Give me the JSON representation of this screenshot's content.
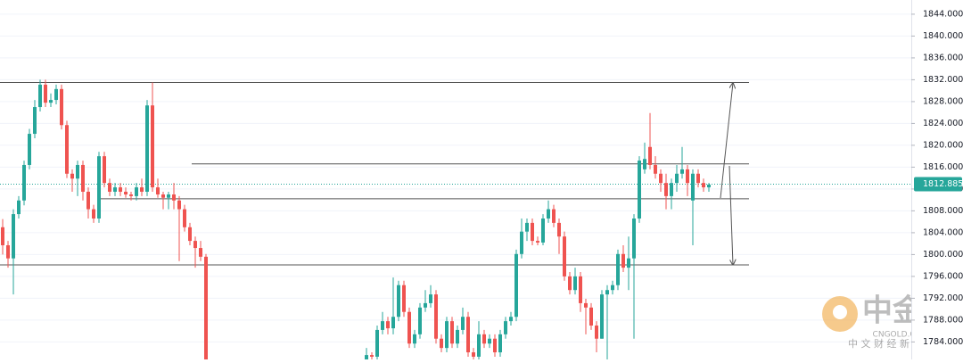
{
  "chart_data": {
    "type": "candlestick",
    "up_color": "#26a69a",
    "down_color": "#ef5350",
    "ylim": [
      1780.8,
      1846.6
    ],
    "yticks": [
      {
        "value": 1844,
        "label": "1844.000"
      },
      {
        "value": 1840,
        "label": "1840.000"
      },
      {
        "value": 1836,
        "label": "1836.000"
      },
      {
        "value": 1832,
        "label": "1832.000"
      },
      {
        "value": 1828,
        "label": "1828.000"
      },
      {
        "value": 1824,
        "label": "1824.000"
      },
      {
        "value": 1820,
        "label": "1820.000"
      },
      {
        "value": 1816,
        "label": "1816.000"
      },
      {
        "value": 1812,
        "label": "1812.000"
      },
      {
        "value": 1808,
        "label": "1808.000"
      },
      {
        "value": 1804,
        "label": "1804.000"
      },
      {
        "value": 1800,
        "label": "1800.000"
      },
      {
        "value": 1796,
        "label": "1796.000"
      },
      {
        "value": 1792,
        "label": "1792.000"
      },
      {
        "value": 1788,
        "label": "1788.000"
      },
      {
        "value": 1784,
        "label": "1784.000"
      }
    ],
    "grid": true,
    "last_price": {
      "value": 1812.885,
      "label": "1812.885"
    },
    "levels": [
      1831.5,
      1816.6,
      1810.2,
      1798.1
    ],
    "ohlc": [
      [
        1805.0,
        1806.5,
        1800.0,
        1801.7
      ],
      [
        1801.7,
        1802.5,
        1797.6,
        1799.3
      ],
      [
        1799.3,
        1808.3,
        1792.7,
        1807.4
      ],
      [
        1807.4,
        1810.7,
        1806.6,
        1809.9
      ],
      [
        1809.9,
        1817.2,
        1809.0,
        1816.4
      ],
      [
        1816.4,
        1823.0,
        1815.6,
        1822.1
      ],
      [
        1822.1,
        1828.3,
        1821.3,
        1827.0
      ],
      [
        1827.0,
        1832.0,
        1826.2,
        1831.1
      ],
      [
        1831.1,
        1832.0,
        1827.0,
        1827.8
      ],
      [
        1827.8,
        1829.5,
        1827.0,
        1828.3
      ],
      [
        1828.3,
        1831.1,
        1827.5,
        1830.3
      ],
      [
        1830.3,
        1831.1,
        1822.9,
        1823.7
      ],
      [
        1823.7,
        1824.5,
        1814.0,
        1814.8
      ],
      [
        1814.8,
        1815.6,
        1811.5,
        1813.9
      ],
      [
        1813.9,
        1817.2,
        1810.7,
        1816.4
      ],
      [
        1816.4,
        1817.2,
        1809.9,
        1811.5
      ],
      [
        1811.5,
        1812.3,
        1806.6,
        1808.3
      ],
      [
        1808.3,
        1809.1,
        1805.8,
        1806.6
      ],
      [
        1806.6,
        1818.8,
        1805.8,
        1818.0
      ],
      [
        1818.0,
        1818.8,
        1812.3,
        1813.1
      ],
      [
        1813.1,
        1813.9,
        1810.7,
        1811.5
      ],
      [
        1811.5,
        1813.1,
        1810.7,
        1812.3
      ],
      [
        1812.3,
        1813.1,
        1810.7,
        1811.5
      ],
      [
        1811.5,
        1812.3,
        1810.4,
        1811.0
      ],
      [
        1811.0,
        1811.5,
        1809.9,
        1810.7
      ],
      [
        1810.7,
        1813.1,
        1809.9,
        1812.3
      ],
      [
        1812.3,
        1813.9,
        1810.7,
        1811.5
      ],
      [
        1811.5,
        1828.3,
        1810.7,
        1827.3
      ],
      [
        1827.3,
        1831.5,
        1811.5,
        1812.3
      ],
      [
        1812.3,
        1813.9,
        1810.4,
        1811.0
      ],
      [
        1811.0,
        1811.5,
        1808.3,
        1810.4
      ],
      [
        1810.4,
        1811.5,
        1808.3,
        1811.0
      ],
      [
        1811.0,
        1813.1,
        1808.3,
        1809.9
      ],
      [
        1809.9,
        1810.7,
        1798.8,
        1808.3
      ],
      [
        1808.3,
        1809.1,
        1804.2,
        1805.0
      ],
      [
        1805.0,
        1805.8,
        1801.7,
        1802.5
      ],
      [
        1802.5,
        1803.3,
        1797.6,
        1801.2
      ],
      [
        1801.2,
        1802.5,
        1798.8,
        1799.6
      ],
      [
        1799.6,
        1800.1,
        1778.0,
        1779.0
      ],
      null,
      null,
      null,
      null,
      null,
      null,
      null,
      null,
      null,
      null,
      null,
      null,
      null,
      null,
      null,
      null,
      null,
      null,
      null,
      null,
      null,
      null,
      null,
      null,
      null,
      null,
      null,
      null,
      null,
      [
        1780.5,
        1782.9,
        1780.0,
        1781.6
      ],
      [
        1781.6,
        1782.1,
        1780.0,
        1781.3
      ],
      [
        1781.3,
        1787.0,
        1780.5,
        1786.2
      ],
      [
        1786.2,
        1789.5,
        1785.4,
        1787.8
      ],
      [
        1787.8,
        1788.6,
        1785.4,
        1786.5
      ],
      [
        1786.5,
        1795.8,
        1785.4,
        1788.6
      ],
      [
        1788.6,
        1795.2,
        1787.8,
        1794.4
      ],
      [
        1794.4,
        1795.2,
        1788.6,
        1789.5
      ],
      [
        1789.5,
        1790.3,
        1782.9,
        1783.7
      ],
      [
        1783.7,
        1786.2,
        1782.9,
        1785.4
      ],
      [
        1785.4,
        1791.1,
        1784.6,
        1790.3
      ],
      [
        1790.3,
        1793.5,
        1789.5,
        1791.1
      ],
      [
        1791.1,
        1794.4,
        1790.3,
        1792.7
      ],
      [
        1792.7,
        1793.5,
        1783.7,
        1784.6
      ],
      [
        1784.6,
        1785.4,
        1782.1,
        1782.9
      ],
      [
        1782.9,
        1788.6,
        1782.1,
        1787.8
      ],
      [
        1787.8,
        1788.6,
        1782.9,
        1783.7
      ],
      [
        1783.7,
        1787.0,
        1782.9,
        1786.2
      ],
      [
        1786.2,
        1790.3,
        1785.4,
        1788.6
      ],
      [
        1788.6,
        1789.5,
        1781.3,
        1782.1
      ],
      [
        1782.1,
        1782.9,
        1780.5,
        1781.3
      ],
      [
        1781.3,
        1787.8,
        1780.5,
        1785.4
      ],
      [
        1785.4,
        1786.2,
        1782.9,
        1783.7
      ],
      [
        1783.7,
        1785.4,
        1782.9,
        1784.6
      ],
      [
        1784.6,
        1785.4,
        1781.3,
        1782.1
      ],
      [
        1782.1,
        1786.2,
        1781.3,
        1785.4
      ],
      [
        1785.4,
        1788.6,
        1784.6,
        1787.8
      ],
      [
        1787.8,
        1789.5,
        1787.0,
        1788.6
      ],
      [
        1788.6,
        1800.9,
        1787.8,
        1800.1
      ],
      [
        1800.1,
        1806.6,
        1799.3,
        1804.2
      ],
      [
        1804.2,
        1806.6,
        1802.5,
        1805.8
      ],
      [
        1805.8,
        1806.6,
        1801.7,
        1802.5
      ],
      [
        1802.5,
        1803.3,
        1801.7,
        1802.2
      ],
      [
        1802.2,
        1807.4,
        1801.7,
        1806.6
      ],
      [
        1806.6,
        1809.9,
        1805.8,
        1808.3
      ],
      [
        1808.3,
        1809.1,
        1805.0,
        1805.8
      ],
      [
        1805.8,
        1806.6,
        1800.1,
        1803.3
      ],
      [
        1803.3,
        1804.2,
        1795.2,
        1796.0
      ],
      [
        1796.0,
        1796.8,
        1792.7,
        1793.5
      ],
      [
        1793.5,
        1797.6,
        1792.7,
        1796.0
      ],
      [
        1796.0,
        1796.8,
        1789.5,
        1791.1
      ],
      [
        1791.1,
        1791.9,
        1785.4,
        1790.3
      ],
      [
        1790.3,
        1791.1,
        1786.2,
        1787.0
      ],
      [
        1787.0,
        1787.8,
        1782.1,
        1784.6
      ],
      [
        1784.6,
        1793.5,
        1784.6,
        1792.7
      ],
      [
        1792.7,
        1794.4,
        1780.5,
        1793.5
      ],
      [
        1793.5,
        1795.2,
        1792.7,
        1794.4
      ],
      [
        1794.4,
        1800.9,
        1793.5,
        1800.1
      ],
      [
        1800.1,
        1801.7,
        1796.8,
        1797.6
      ],
      [
        1797.6,
        1803.3,
        1793.5,
        1799.3
      ],
      [
        1799.3,
        1807.4,
        1784.6,
        1806.6
      ],
      [
        1806.6,
        1818.0,
        1805.8,
        1817.2
      ],
      [
        1815.6,
        1820.5,
        1814.8,
        1817.5
      ],
      [
        1819.7,
        1825.9,
        1815.6,
        1816.4
      ],
      [
        1816.4,
        1818.0,
        1813.9,
        1814.8
      ],
      [
        1814.8,
        1815.6,
        1811.5,
        1813.1
      ],
      [
        1813.1,
        1814.8,
        1808.3,
        1810.7
      ],
      [
        1810.7,
        1813.9,
        1808.3,
        1813.1
      ],
      [
        1813.1,
        1816.4,
        1811.5,
        1814.8
      ],
      [
        1814.8,
        1819.7,
        1813.9,
        1815.6
      ],
      [
        1815.6,
        1816.4,
        1810.7,
        1813.1
      ],
      [
        1809.9,
        1815.6,
        1801.7,
        1814.8
      ],
      [
        1814.8,
        1815.6,
        1812.3,
        1813.1
      ],
      [
        1813.1,
        1813.9,
        1811.5,
        1812.3
      ],
      [
        1812.3,
        1813.1,
        1811.5,
        1812.8
      ]
    ]
  },
  "watermark": {
    "brand": "中金网",
    "domain": "CNGOLD.COM.CN",
    "tagline": "中 文 财 经 新 媒 体"
  }
}
